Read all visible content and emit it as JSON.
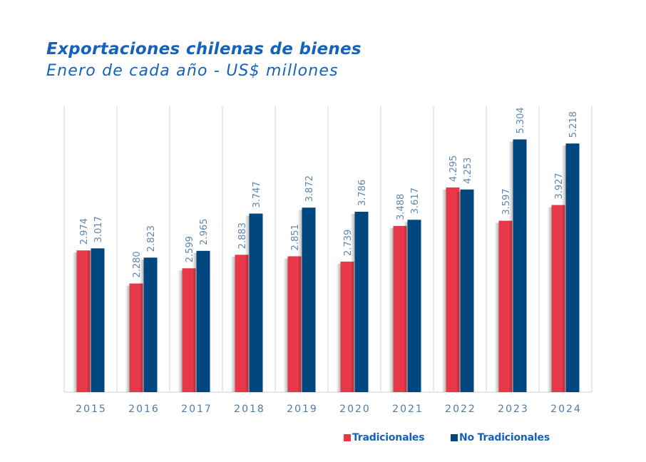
{
  "title": "Exportaciones chilenas de bienes",
  "subtitle": "Enero de cada año - US$ millones",
  "colors": {
    "title": "#1662B8",
    "tradicionales": "#E8394A",
    "no_tradicionales": "#00467F",
    "labels": "#5F86B0",
    "grid": "#D9D9D9"
  },
  "legend": [
    {
      "label": "Tradicionales",
      "color": "#E8394A"
    },
    {
      "label": "No Tradicionales",
      "color": "#00467F"
    }
  ],
  "chart_data": {
    "type": "bar",
    "title": "Exportaciones chilenas de bienes",
    "subtitle": "Enero de cada año - US$ millones",
    "xlabel": "",
    "ylabel": "",
    "ylim": [
      0,
      6000
    ],
    "grid": "vertical separators between categories",
    "legend_position": "bottom-right",
    "categories": [
      "2015",
      "2016",
      "2017",
      "2018",
      "2019",
      "2020",
      "2021",
      "2022",
      "2023",
      "2024"
    ],
    "series": [
      {
        "name": "Tradicionales",
        "color": "#E8394A",
        "values": [
          2974,
          2280,
          2599,
          2883,
          2851,
          2739,
          3488,
          4295,
          3597,
          3927
        ],
        "labels": [
          "2.974",
          "2.280",
          "2.599",
          "2.883",
          "2.851",
          "2.739",
          "3.488",
          "4.295",
          "3.597",
          "3.927"
        ]
      },
      {
        "name": "No Tradicionales",
        "color": "#00467F",
        "values": [
          3017,
          2823,
          2965,
          3747,
          3872,
          3786,
          3617,
          4253,
          5304,
          5218
        ],
        "labels": [
          "3.017",
          "2.823",
          "2.965",
          "3.747",
          "3.872",
          "3.786",
          "3.617",
          "4.253",
          "5.304",
          "5.218"
        ]
      }
    ]
  }
}
